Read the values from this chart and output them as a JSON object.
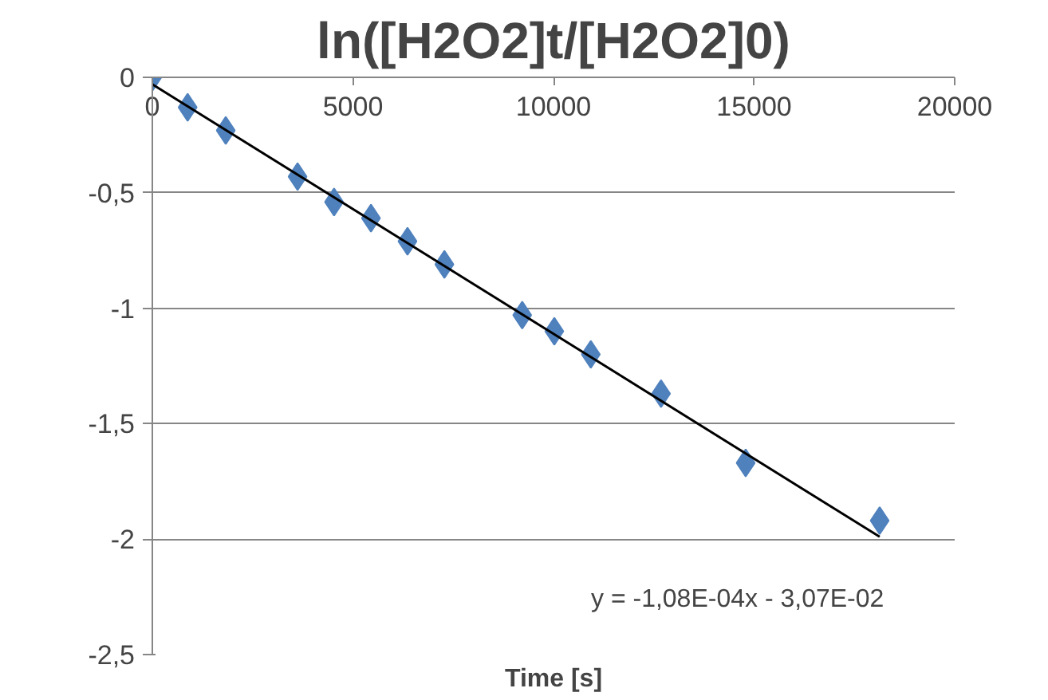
{
  "chart_data": {
    "type": "scatter",
    "title": "ln([H2O2]t/[H2O2]0)",
    "xlabel": "Time [s]",
    "series": [
      {
        "color": "#4f81bd",
        "marker": "diamond",
        "x": [
          0,
          880,
          1830,
          3620,
          4530,
          5450,
          6360,
          7280,
          9220,
          10020,
          10930,
          12680,
          14790,
          18130
        ],
        "values": [
          0,
          -0.13,
          -0.23,
          -0.43,
          -0.54,
          -0.61,
          -0.71,
          -0.81,
          -1.03,
          -1.1,
          -1.2,
          -1.37,
          -1.67,
          -1.92
        ]
      },
      {
        "type": "line",
        "color": "#000000",
        "x": [
          0,
          18130
        ],
        "values": [
          -0.03,
          -1.99
        ]
      }
    ],
    "xlim": [
      0,
      20000
    ],
    "xticks": [
      0,
      5000,
      10000,
      15000,
      20000
    ],
    "ylim": [
      -2.5,
      0
    ],
    "yticks": [
      0,
      {
        "value": -0.5,
        "label": "-0,5"
      },
      -1,
      {
        "value": -1.5,
        "label": "-1,5"
      },
      -2,
      {
        "value": -2.5,
        "label": "-2,5"
      }
    ],
    "grid": "y",
    "annotations": [
      "y = -1,08E-04x - 3,07E-02"
    ]
  }
}
